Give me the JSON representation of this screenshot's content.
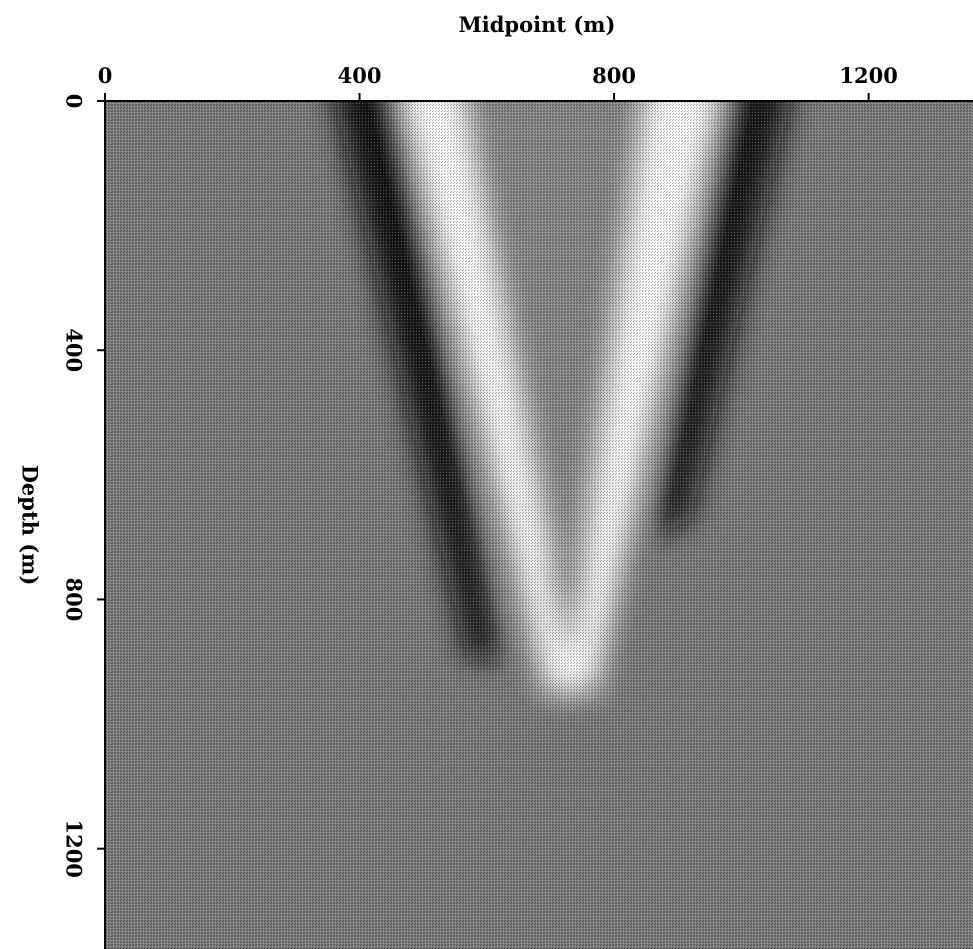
{
  "chart_data": {
    "type": "image",
    "x_label": "Midpoint (m)",
    "y_label": "Depth (m)",
    "xlim": [
      0,
      1364
    ],
    "xticks": [
      0,
      400,
      800,
      1200
    ],
    "ylim": [
      0,
      1361
    ],
    "yticks": [
      0,
      400,
      800,
      1200
    ]
  }
}
